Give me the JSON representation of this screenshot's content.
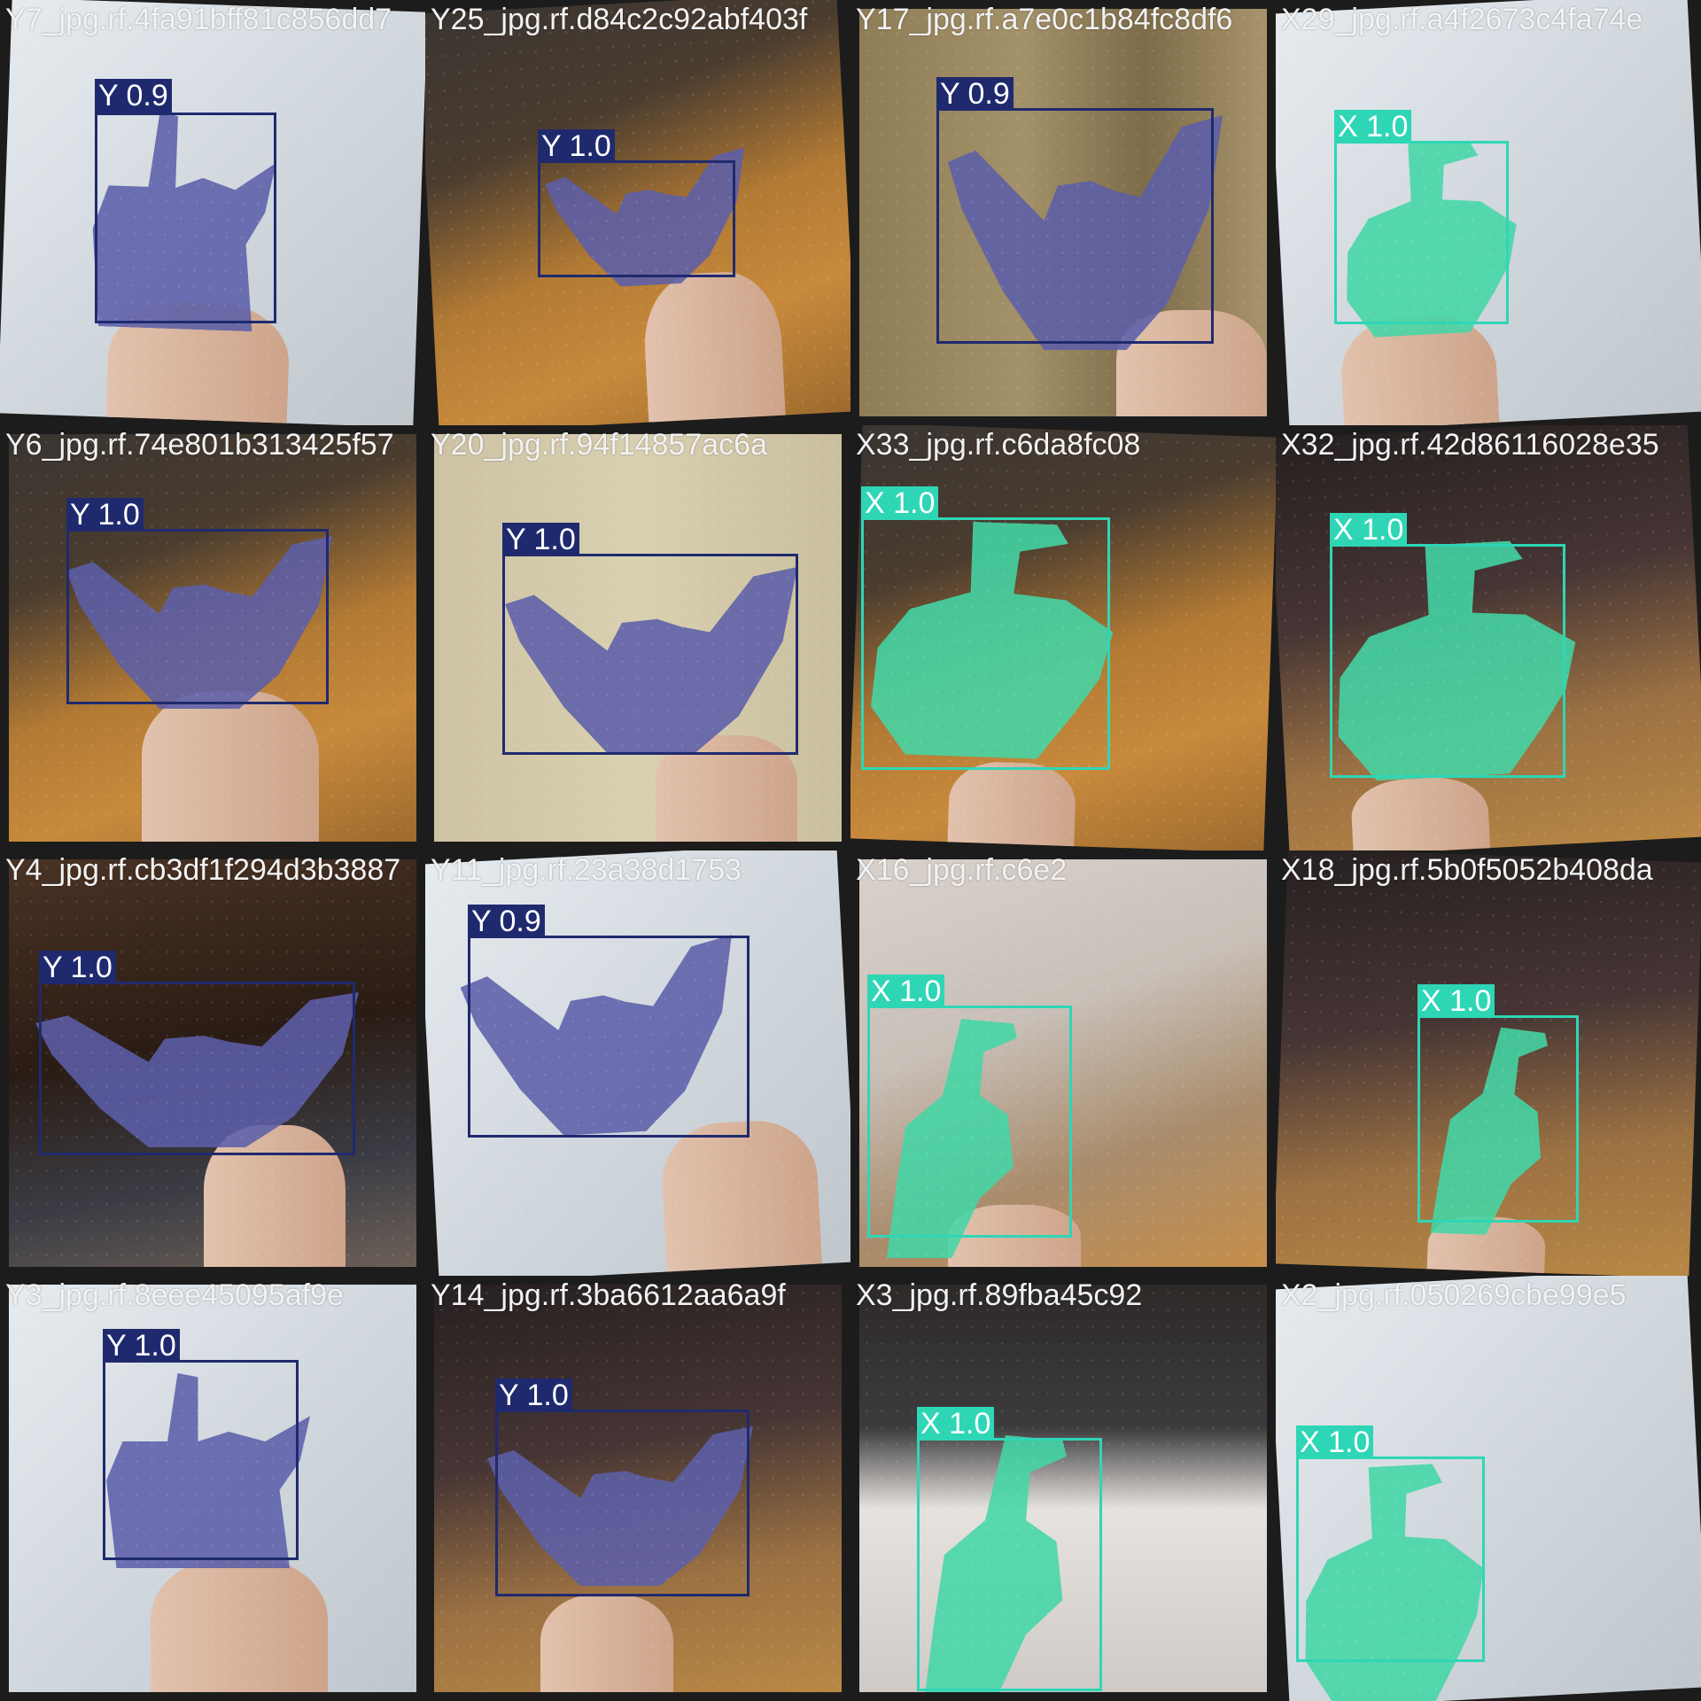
{
  "colors": {
    "class_Y_box": "#1f2a6e",
    "class_Y_mask": "#5c5ea8",
    "class_X_box": "#2ed6b6",
    "class_X_mask": "#43d6a6",
    "label_text": "#ffffff",
    "filename_text": "#f2f2f2"
  },
  "tiles": [
    {
      "filename": "Y7_jpg.rf.4fa91bff81c856dd7",
      "label": "Y 0.9",
      "cls": "y",
      "scene": "white-board"
    },
    {
      "filename": "Y25_jpg.rf.d84c2c92abf403f",
      "label": "Y 1.0",
      "cls": "y",
      "scene": "room-floor"
    },
    {
      "filename": "Y17_jpg.rf.a7e0c1b84fc8df6",
      "label": "Y 0.9",
      "cls": "y",
      "scene": "door"
    },
    {
      "filename": "X29_jpg.rf.a4f2673c4fa74e",
      "label": "X 1.0",
      "cls": "x",
      "scene": "white-board"
    },
    {
      "filename": "Y6_jpg.rf.74e801b313425f57",
      "label": "Y 1.0",
      "cls": "y",
      "scene": "room-floor"
    },
    {
      "filename": "Y20_jpg.rf.94f14857ac6a",
      "label": "Y 1.0",
      "cls": "y",
      "scene": "door"
    },
    {
      "filename": "X33_jpg.rf.c6da8fc08",
      "label": "X 1.0",
      "cls": "x",
      "scene": "room-floor"
    },
    {
      "filename": "X32_jpg.rf.42d86116028e35",
      "label": "X 1.0",
      "cls": "x",
      "scene": "closet"
    },
    {
      "filename": "Y4_jpg.rf.cb3df1f294d3b3887",
      "label": "Y 1.0",
      "cls": "y",
      "scene": "desk-room"
    },
    {
      "filename": "Y11_jpg.rf.23a38d1753",
      "label": "Y 0.9",
      "cls": "y",
      "scene": "white-board"
    },
    {
      "filename": "X16_jpg.rf.c6e2",
      "label": "X 1.0",
      "cls": "x",
      "scene": "wall-floor"
    },
    {
      "filename": "X18_jpg.rf.5b0f5052b408da",
      "label": "X 1.0",
      "cls": "x",
      "scene": "closet"
    },
    {
      "filename": "Y3_jpg.rf.8eee45095af9e",
      "label": "Y 1.0",
      "cls": "y",
      "scene": "white-wall"
    },
    {
      "filename": "Y14_jpg.rf.3ba6612aa6a9f",
      "label": "Y 1.0",
      "cls": "y",
      "scene": "closet"
    },
    {
      "filename": "X3_jpg.rf.89fba45c92",
      "label": "X 1.0",
      "cls": "x",
      "scene": "computer-desk"
    },
    {
      "filename": "X2_jpg.rf.050269cbe99e5",
      "label": "X 1.0",
      "cls": "x",
      "scene": "white-wall"
    }
  ]
}
